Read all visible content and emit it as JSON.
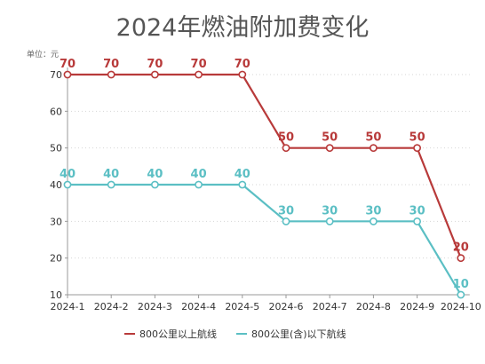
{
  "chart_data": {
    "type": "line",
    "title": "2024年燃油附加费变化",
    "unit_label": "单位：元",
    "categories": [
      "2024-1",
      "2024-2",
      "2024-3",
      "2024-4",
      "2024-5",
      "2024-6",
      "2024-7",
      "2024-8",
      "2024-9",
      "2024-10"
    ],
    "series": [
      {
        "name": "800公里以上航线",
        "values": [
          70,
          70,
          70,
          70,
          70,
          50,
          50,
          50,
          50,
          20
        ],
        "color": "#b83a3a"
      },
      {
        "name": "800公里(含)以下航线",
        "values": [
          40,
          40,
          40,
          40,
          40,
          30,
          30,
          30,
          30,
          10
        ],
        "color": "#5bbfc4"
      }
    ],
    "yticks": [
      10,
      20,
      30,
      40,
      50,
      60,
      70
    ],
    "ylim": [
      10,
      70
    ],
    "xlabel": "",
    "ylabel": "",
    "grid": "horizontal-dotted",
    "legend_position": "bottom"
  }
}
